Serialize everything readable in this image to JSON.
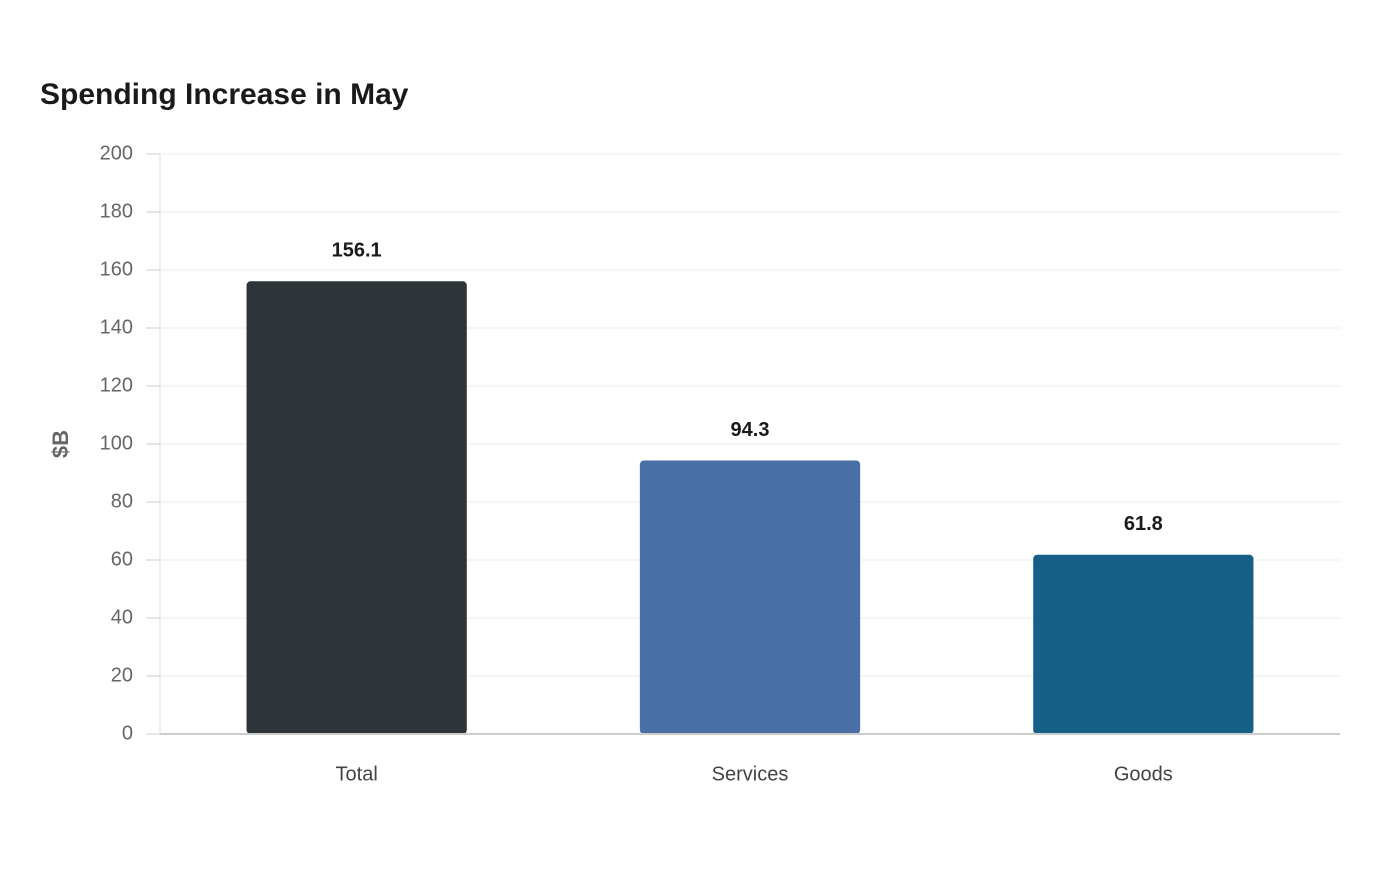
{
  "chart_data": {
    "type": "bar",
    "title": "Spending Increase in May",
    "y_label": "$B",
    "categories": [
      "Total",
      "Services",
      "Goods"
    ],
    "values": [
      156.1,
      94.3,
      61.8
    ],
    "colors": [
      "#2e3538",
      "#4a6fa5",
      "#166088"
    ],
    "ylim": [
      0,
      200
    ],
    "yticks": [
      0,
      20,
      40,
      60,
      80,
      100,
      120,
      140,
      160,
      180,
      200
    ],
    "grid": true
  }
}
